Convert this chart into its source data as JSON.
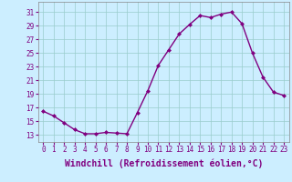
{
  "x": [
    0,
    1,
    2,
    3,
    4,
    5,
    6,
    7,
    8,
    9,
    10,
    11,
    12,
    13,
    14,
    15,
    16,
    17,
    18,
    19,
    20,
    21,
    22,
    23
  ],
  "y": [
    16.5,
    15.8,
    14.8,
    13.8,
    13.2,
    13.2,
    13.4,
    13.3,
    13.2,
    16.3,
    19.5,
    23.2,
    25.5,
    27.8,
    29.2,
    30.5,
    30.2,
    30.7,
    31.0,
    29.3,
    25.0,
    21.5,
    19.3,
    18.8
  ],
  "line_color": "#800080",
  "marker": "D",
  "markersize": 2.0,
  "linewidth": 1.0,
  "xlabel": "Windchill (Refroidissement éolien,°C)",
  "xlabel_fontsize": 7,
  "ylabel_ticks": [
    13,
    15,
    17,
    19,
    21,
    23,
    25,
    27,
    29,
    31
  ],
  "xtick_labels": [
    "0",
    "1",
    "2",
    "3",
    "4",
    "5",
    "6",
    "7",
    "8",
    "9",
    "10",
    "11",
    "12",
    "13",
    "14",
    "15",
    "16",
    "17",
    "18",
    "19",
    "20",
    "21",
    "22",
    "23"
  ],
  "ylim": [
    12.0,
    32.5
  ],
  "xlim": [
    -0.5,
    23.5
  ],
  "bg_color": "#cceeff",
  "grid_color": "#99cccc",
  "tick_color": "#800080",
  "tick_fontsize": 5.5,
  "spine_color": "#888888"
}
